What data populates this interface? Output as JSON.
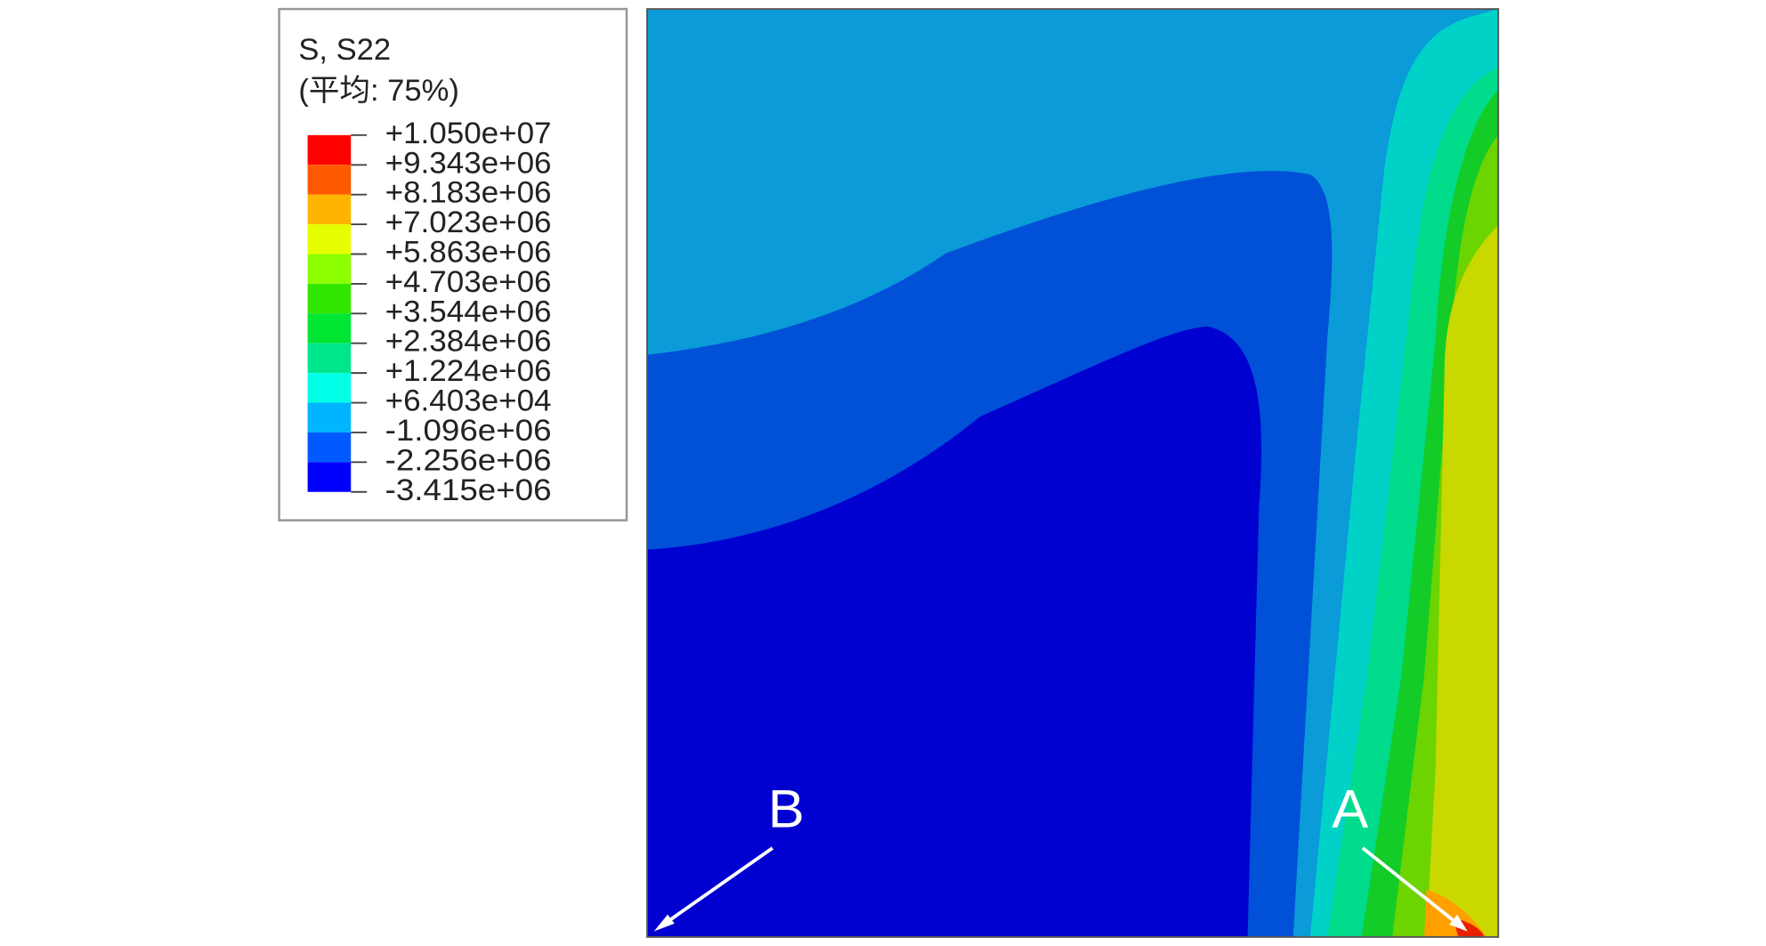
{
  "legend": {
    "title": "S, S22",
    "subtitle": "(平均: 75%)",
    "labels": [
      "+1.050e+07",
      "+9.343e+06",
      "+8.183e+06",
      "+7.023e+06",
      "+5.863e+06",
      "+4.703e+06",
      "+3.544e+06",
      "+2.384e+06",
      "+1.224e+06",
      "+6.403e+04",
      "-1.096e+06",
      "-2.256e+06",
      "-3.415e+06"
    ],
    "colors": [
      "#ff0000",
      "#ff5a00",
      "#ffb400",
      "#e6ff00",
      "#8cff00",
      "#32e600",
      "#00e632",
      "#00e68c",
      "#00ffe6",
      "#00b4ff",
      "#005aff",
      "#0000ff"
    ]
  },
  "points": [
    {
      "label": "B"
    },
    {
      "label": "A"
    }
  ]
}
